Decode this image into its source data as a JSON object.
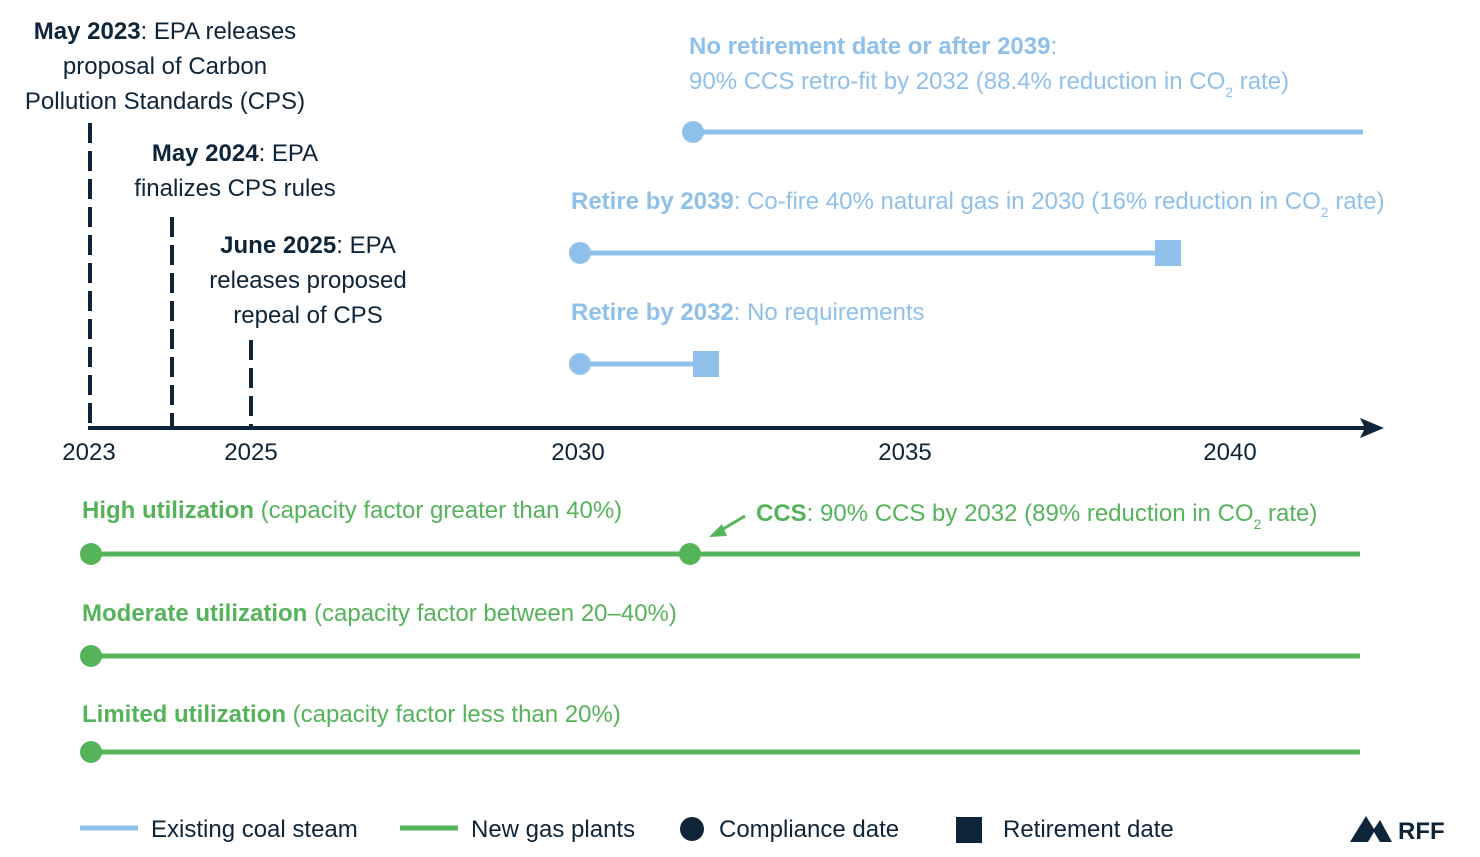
{
  "colors": {
    "navy": "#0d2439",
    "coal": "#8fc0ea",
    "gas": "#55b35a"
  },
  "events": [
    {
      "bold": "May 2023",
      "lines": [
        "May 2023: EPA releases",
        "proposal of Carbon",
        "Pollution Standards (CPS)"
      ],
      "rest0": ": EPA releases"
    },
    {
      "bold": "May 2024",
      "lines": [
        "May 2024: EPA",
        "finalizes CPS rules"
      ],
      "rest0": ": EPA"
    },
    {
      "bold": "June 2025",
      "lines": [
        "June 2025: EPA",
        "releases proposed",
        "repeal of CPS"
      ],
      "rest0": ": EPA"
    }
  ],
  "axis": {
    "ticks": [
      "2023",
      "2025",
      "2030",
      "2035",
      "2040"
    ]
  },
  "coal_steam": [
    {
      "bold": "No retirement date or after 2039",
      "rest": ":",
      "line2_pre": "90% CCS retro-fit by 2032 (88.4% reduction in CO",
      "sub": "2",
      "line2_post": " rate)",
      "compliance_year": 2032,
      "retirement_year": null
    },
    {
      "bold": "Retire by 2039",
      "rest": ": Co-fire 40% natural gas in 2030 (16% reduction in CO",
      "sub": "2",
      "post": " rate)",
      "compliance_year": 2030,
      "retirement_year": 2039
    },
    {
      "bold": "Retire by 2032",
      "rest": ": No requirements",
      "compliance_year": 2030,
      "retirement_year": 2032
    }
  ],
  "gas_plants": [
    {
      "bold": "High utilization",
      "rest": " (capacity factor greater than 40%)"
    },
    {
      "bold": "Moderate utilization",
      "rest": " (capacity factor between 20–40%)"
    },
    {
      "bold": "Limited utilization",
      "rest": " (capacity factor less than 20%)"
    }
  ],
  "ccs_note": {
    "bold": "CCS",
    "rest": ": 90% CCS by 2032 (89% reduction in CO",
    "sub": "2",
    "post": " rate)",
    "year": 2032
  },
  "legend": {
    "existing_coal": "Existing coal steam",
    "new_gas": "New gas plants",
    "compliance": "Compliance date",
    "retirement": "Retirement date"
  },
  "logo": "RFF"
}
